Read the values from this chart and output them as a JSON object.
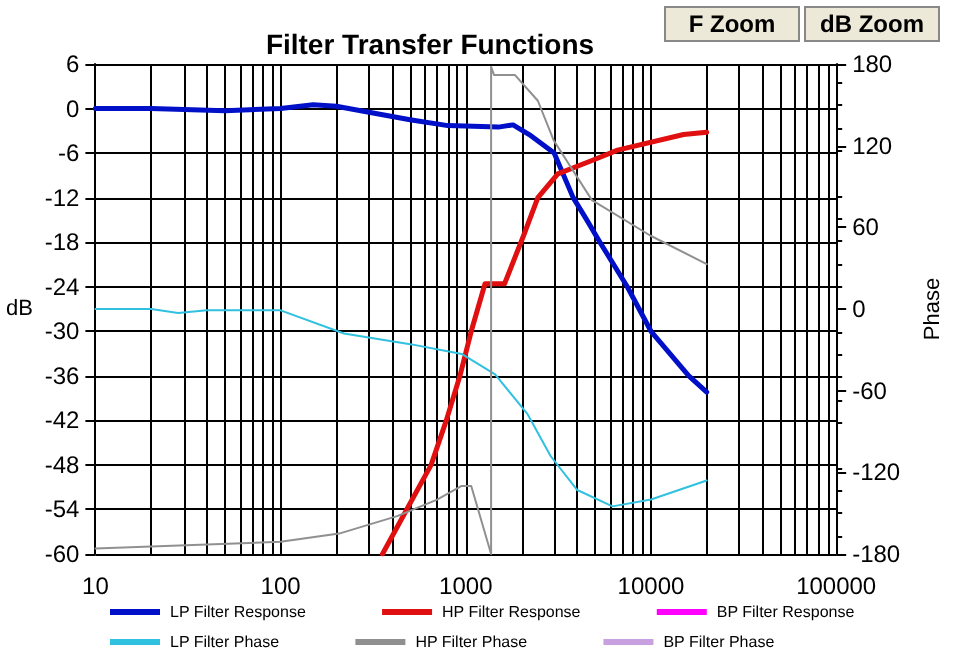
{
  "chart_data": {
    "type": "line",
    "title": "Filter Transfer Functions",
    "ylabel": "dB",
    "y2label": "Phase",
    "annotations": [
      "F Zoom",
      "dB Zoom"
    ],
    "log": "x",
    "xlim": [
      10,
      100000
    ],
    "xticks": [
      10,
      100,
      1000,
      10000,
      100000
    ],
    "ylim": [
      -60,
      6
    ],
    "yticks": [
      -60,
      -54,
      -48,
      -42,
      -36,
      -30,
      -24,
      -18,
      -12,
      -6,
      0,
      6
    ],
    "y2lim": [
      -180,
      180
    ],
    "y2ticks": [
      -180,
      -120,
      -60,
      0,
      60,
      120,
      180
    ],
    "grid": true,
    "legend": "bottom",
    "marker": "none",
    "line_style": "solid",
    "series": [
      {
        "name": "LP Filter Response",
        "color": "#0010c8",
        "x": [
          10,
          20,
          50,
          100,
          150,
          200,
          300,
          500,
          800,
          1500,
          1800,
          2200,
          3000,
          3800,
          4500,
          5300,
          7450,
          10000,
          16000,
          20000
        ],
        "values": [
          0,
          0,
          -0.3,
          0,
          0.5,
          0.3,
          -0.5,
          -1.5,
          -2.3,
          -2.5,
          -2.2,
          -3.5,
          -6,
          -12,
          -15,
          -18,
          -24,
          -30,
          -36,
          -38.2
        ]
      },
      {
        "name": "HP Filter Response",
        "color": "#e01010",
        "x": [
          355,
          480,
          650,
          785,
          930,
          1070,
          1270,
          1620,
          2060,
          2450,
          3140,
          4800,
          6600,
          15000,
          20000
        ],
        "values": [
          -60,
          -54,
          -48,
          -42,
          -36,
          -30,
          -23.6,
          -23.6,
          -17,
          -12,
          -8.8,
          -7,
          -5.6,
          -3.5,
          -3.2
        ]
      },
      {
        "name": "BP Filter Response",
        "color": "#ff00ff"
      },
      {
        "name": "LP Filter Phase",
        "color": "#30c0e0",
        "axis": "y2",
        "x": [
          10,
          20,
          28,
          40,
          100,
          220,
          510,
          950,
          1440,
          2150,
          2870,
          4000,
          6200,
          10000,
          20000
        ],
        "values": [
          0,
          0,
          -3,
          -1,
          -1,
          -18,
          -26,
          -33,
          -48,
          -77,
          -108,
          -133,
          -145,
          -140,
          -126
        ]
      },
      {
        "name": "HP Filter Phase",
        "color": "#909090",
        "axis": "y2",
        "x": [
          10,
          100,
          207,
          430,
          700,
          950,
          1070,
          1370,
          1370,
          1420,
          1840,
          2450,
          2980,
          4800,
          9900,
          20000
        ],
        "values": [
          -176,
          -171,
          -165,
          -152,
          -140,
          -130,
          -130,
          -180,
          178,
          172,
          172,
          153,
          124,
          80,
          54,
          33
        ]
      },
      {
        "name": "BP Filter Phase",
        "color": "#c8a0e0",
        "axis": "y2"
      }
    ]
  }
}
